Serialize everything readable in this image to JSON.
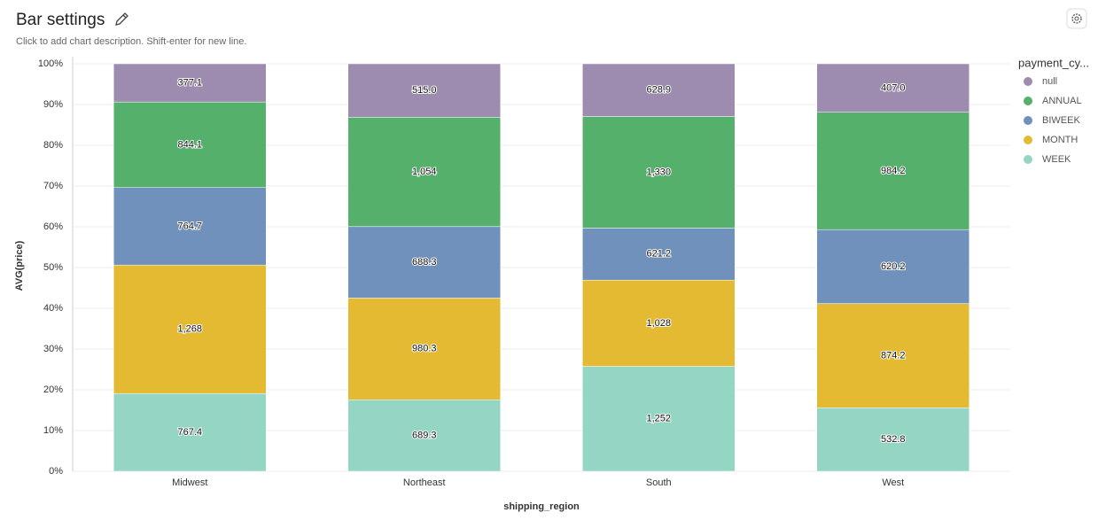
{
  "header": {
    "title": "Bar settings",
    "description": "Click to add chart description. Shift-enter for new line."
  },
  "chart_data": {
    "type": "bar",
    "stacking": "percent",
    "x_label": "shipping_region",
    "y_label": "AVG(price)",
    "legend_title": "payment_cy...",
    "categories": [
      "Midwest",
      "Northeast",
      "South",
      "West"
    ],
    "series": [
      {
        "name": "null",
        "color": "#9e8bb0",
        "values": [
          377.1,
          515.0,
          628.9,
          407.0
        ],
        "value_labels": [
          "377.1",
          "515.0",
          "628.9",
          "407.0"
        ]
      },
      {
        "name": "ANNUAL",
        "color": "#55b06b",
        "values": [
          844.1,
          1054,
          1330,
          984.2
        ],
        "value_labels": [
          "844.1",
          "1,054",
          "1,330",
          "984.2"
        ]
      },
      {
        "name": "BIWEEK",
        "color": "#6f91bb",
        "values": [
          764.7,
          688.3,
          621.2,
          620.2
        ],
        "value_labels": [
          "764.7",
          "688.3",
          "621.2",
          "620.2"
        ]
      },
      {
        "name": "MONTH",
        "color": "#e5ba33",
        "values": [
          1268,
          980.3,
          1028,
          874.2
        ],
        "value_labels": [
          "1,268",
          "980.3",
          "1,028",
          "874.2"
        ]
      },
      {
        "name": "WEEK",
        "color": "#95d5c3",
        "values": [
          767.4,
          689.3,
          1252,
          532.8
        ],
        "value_labels": [
          "767.4",
          "689.3",
          "1,252",
          "532.8"
        ]
      }
    ],
    "ylim": [
      0,
      100
    ],
    "yticks": [
      {
        "value": 0,
        "label": "0%"
      },
      {
        "value": 10,
        "label": "10%"
      },
      {
        "value": 20,
        "label": "20%"
      },
      {
        "value": 30,
        "label": "30%"
      },
      {
        "value": 40,
        "label": "40%"
      },
      {
        "value": 50,
        "label": "50%"
      },
      {
        "value": 60,
        "label": "60%"
      },
      {
        "value": 70,
        "label": "70%"
      },
      {
        "value": 80,
        "label": "80%"
      },
      {
        "value": 90,
        "label": "90%"
      },
      {
        "value": 100,
        "label": "100%"
      }
    ],
    "grid": true
  }
}
